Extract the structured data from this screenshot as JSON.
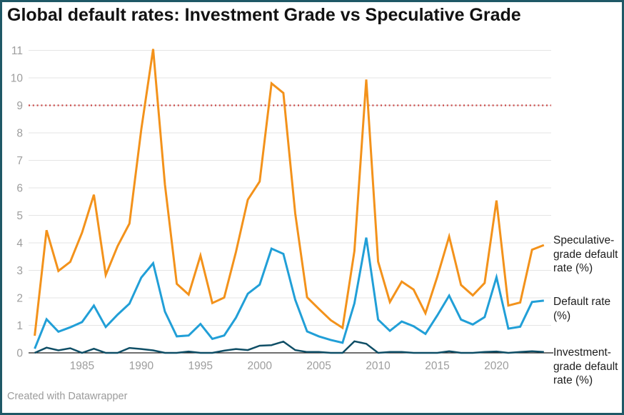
{
  "title": "Global default rates: Investment Grade vs Speculative Grade",
  "attribution": "Created with Datawrapper",
  "colors": {
    "speculative": "#f3921b",
    "default_rate": "#219fd7",
    "investment": "#0f4e66",
    "reference_line": "#c94846",
    "grid": "#e4e4e4",
    "zero_axis": "#1a1a1a",
    "tick_label": "#9d9d9d",
    "series_label": "#1d1d1d",
    "frame_border": "#1f5866",
    "title_text": "#121212"
  },
  "chart_data": {
    "type": "line",
    "title": "Global default rates: Investment Grade vs Speculative Grade",
    "x": [
      1981,
      1982,
      1983,
      1984,
      1985,
      1986,
      1987,
      1988,
      1989,
      1990,
      1991,
      1992,
      1993,
      1994,
      1995,
      1996,
      1997,
      1998,
      1999,
      2000,
      2001,
      2002,
      2003,
      2004,
      2005,
      2006,
      2007,
      2008,
      2009,
      2010,
      2011,
      2012,
      2013,
      2014,
      2015,
      2016,
      2017,
      2018,
      2019,
      2020,
      2021,
      2022,
      2023,
      2024
    ],
    "series": [
      {
        "name": "Speculative-grade default rate (%)",
        "color": "#f3921b",
        "values": [
          0.62,
          4.46,
          2.98,
          3.31,
          4.37,
          5.75,
          2.83,
          3.88,
          4.7,
          8.13,
          11.05,
          6.12,
          2.51,
          2.12,
          3.54,
          1.81,
          2.01,
          3.67,
          5.57,
          6.23,
          9.8,
          9.45,
          5.07,
          2.02,
          1.6,
          1.19,
          0.91,
          3.7,
          9.94,
          3.32,
          1.85,
          2.59,
          2.3,
          1.44,
          2.77,
          4.23,
          2.47,
          2.09,
          2.54,
          5.54,
          1.72,
          1.83,
          3.75,
          3.92
        ]
      },
      {
        "name": "Default rate (%)",
        "color": "#219fd7",
        "values": [
          0.15,
          1.22,
          0.77,
          0.93,
          1.12,
          1.72,
          0.94,
          1.39,
          1.79,
          2.74,
          3.26,
          1.5,
          0.6,
          0.63,
          1.05,
          0.51,
          0.63,
          1.28,
          2.15,
          2.48,
          3.79,
          3.6,
          1.93,
          0.78,
          0.6,
          0.47,
          0.37,
          1.8,
          4.19,
          1.21,
          0.8,
          1.14,
          0.97,
          0.69,
          1.36,
          2.08,
          1.21,
          1.03,
          1.3,
          2.75,
          0.88,
          0.95,
          1.85,
          1.9
        ]
      },
      {
        "name": "Investment-grade default rate (%)",
        "color": "#0f4e66",
        "values": [
          0.0,
          0.19,
          0.09,
          0.17,
          0.0,
          0.15,
          0.0,
          0.0,
          0.18,
          0.14,
          0.09,
          0.0,
          0.0,
          0.05,
          0.0,
          0.0,
          0.08,
          0.14,
          0.1,
          0.26,
          0.28,
          0.41,
          0.1,
          0.03,
          0.03,
          0.0,
          0.0,
          0.42,
          0.33,
          0.0,
          0.03,
          0.03,
          0.0,
          0.0,
          0.0,
          0.06,
          0.0,
          0.0,
          0.03,
          0.05,
          0.0,
          0.03,
          0.06,
          0.03
        ]
      }
    ],
    "reference_line": {
      "value": 9,
      "style": "dotted",
      "color": "#c94846"
    },
    "ylim": [
      0,
      11
    ],
    "yticks": [
      0,
      1,
      2,
      3,
      4,
      5,
      6,
      7,
      8,
      9,
      10,
      11
    ],
    "xticks": [
      1985,
      1990,
      1995,
      2000,
      2005,
      2010,
      2015,
      2020
    ],
    "grid": true,
    "legend_position": "right-edge-direct-labels"
  }
}
